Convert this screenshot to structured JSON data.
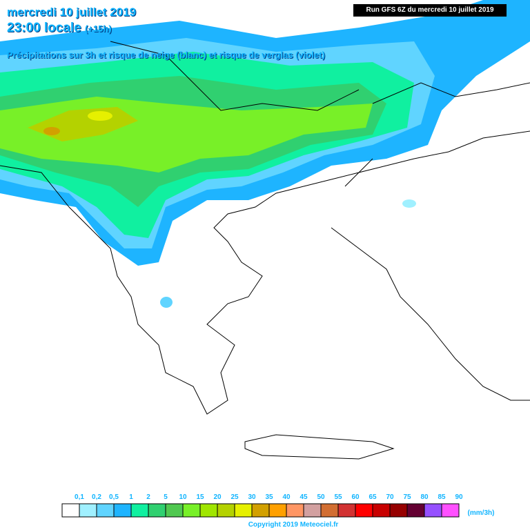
{
  "header": {
    "date": "mercredi 10 juillet 2019",
    "time": "23:00 locale",
    "offset": "(+15h)",
    "subtitle": "Précipitations sur 3h et risque de neige (blanc) et risque de verglas (violet)",
    "run": "Run GFS 6Z du mercredi 10 juillet 2019"
  },
  "legend": {
    "labels": [
      "0,1",
      "0,2",
      "0,5",
      "1",
      "2",
      "5",
      "10",
      "15",
      "20",
      "25",
      "30",
      "35",
      "40",
      "45",
      "50",
      "55",
      "60",
      "65",
      "70",
      "75",
      "80",
      "85",
      "90"
    ],
    "colors": [
      "#ffffff",
      "#a0f0ff",
      "#60d4ff",
      "#1eb4ff",
      "#10f0a0",
      "#30d070",
      "#50c850",
      "#78f028",
      "#a0e600",
      "#b4d200",
      "#e6f000",
      "#d2a000",
      "#ffa000",
      "#ff9664",
      "#d2a0a0",
      "#d26e32",
      "#d23232",
      "#ff0000",
      "#c80000",
      "#960000",
      "#640032",
      "#9650ff",
      "#ff50ff"
    ],
    "unit": "(mm/3h)"
  },
  "copyright": "Copyright 2019 Meteociel.fr"
}
